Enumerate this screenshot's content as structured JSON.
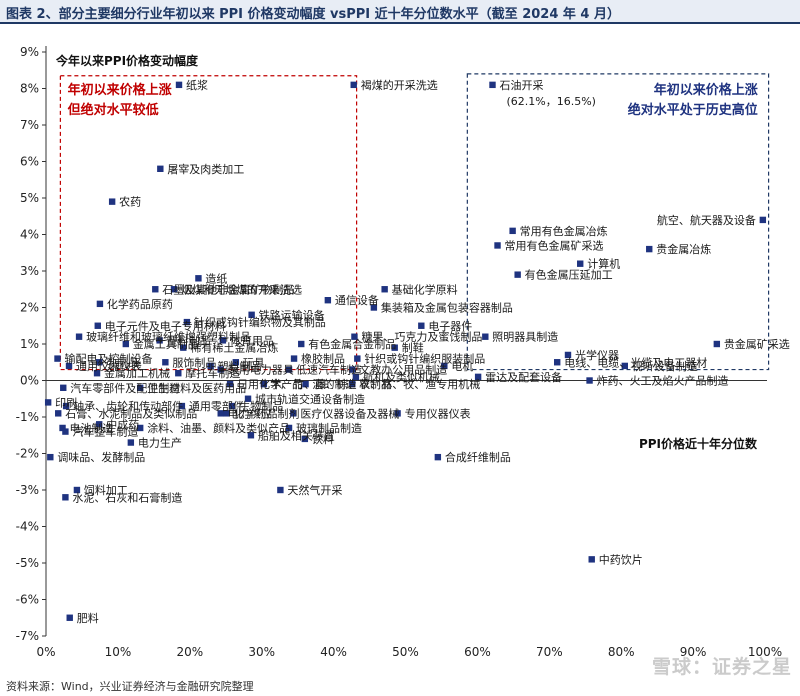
{
  "header": {
    "title": "图表 2、部分主要细分行业年初以来 PPI 价格变动幅度 vsPPI 近十年分位数水平（截至 2024 年 4 月）"
  },
  "footer": {
    "source": "资料来源：Wind，兴业证券经济与金融研究院整理"
  },
  "watermark": {
    "text": "雪球：证券之星"
  },
  "colors": {
    "marker": "#1f3380",
    "box_red": "#c00000",
    "box_blue": "#1f3864",
    "box_blue_text": "#1f3380"
  },
  "chart_data": {
    "type": "scatter",
    "ylabel": "今年以来PPI价格变动幅度",
    "xlabel": "PPI价格近十年分位数",
    "xlim": [
      0,
      100
    ],
    "ylim": [
      -7,
      9
    ],
    "x_unit": "%",
    "y_unit": "%",
    "x_ticks": [
      "0%",
      "10%",
      "20%",
      "30%",
      "40%",
      "50%",
      "60%",
      "70%",
      "80%",
      "90%",
      "100%"
    ],
    "y_ticks": [
      "9%",
      "8%",
      "7%",
      "6%",
      "5%",
      "4%",
      "3%",
      "2%",
      "1%",
      "0%",
      "-1%",
      "-2%",
      "-3%",
      "-4%",
      "-5%",
      "-6%",
      "-7%"
    ],
    "annotations": {
      "red_box": "年初以来价格上涨\n但绝对水平较低",
      "blue_box": "年初以来价格上涨\n绝对水平处于历史高位",
      "oil_label": "(62.1%，16.5%)"
    },
    "points": [
      {
        "label": "石油开采",
        "x": 62.1,
        "y": 8.1
      },
      {
        "label": "纸浆",
        "x": 18.5,
        "y": 8.1
      },
      {
        "label": "褐煤的开采洗选",
        "x": 42.8,
        "y": 8.1
      },
      {
        "label": "屠宰及肉类加工",
        "x": 15.9,
        "y": 5.8
      },
      {
        "label": "农药",
        "x": 9.2,
        "y": 4.9
      },
      {
        "label": "航空、航天器及设备",
        "x": 99.7,
        "y": 4.4
      },
      {
        "label": "常用有色金属冶炼",
        "x": 64.9,
        "y": 4.1
      },
      {
        "label": "常用有色金属矿采选",
        "x": 62.8,
        "y": 3.7
      },
      {
        "label": "贵金属冶炼",
        "x": 83.9,
        "y": 3.6
      },
      {
        "label": "计算机",
        "x": 74.3,
        "y": 3.2
      },
      {
        "label": "有色金属压延加工",
        "x": 65.6,
        "y": 2.9
      },
      {
        "label": "石墨及其他非金属矿物制品",
        "x": 15.2,
        "y": 2.5
      },
      {
        "label": "造纸",
        "x": 21.2,
        "y": 2.8
      },
      {
        "label": "烟煤和无烟煤的开采洗选",
        "x": 17.8,
        "y": 2.5
      },
      {
        "label": "通信设备",
        "x": 39.2,
        "y": 2.2
      },
      {
        "label": "基础化学原料",
        "x": 47.1,
        "y": 2.5
      },
      {
        "label": "化学药品原药",
        "x": 7.5,
        "y": 2.1
      },
      {
        "label": "铁路运输设备",
        "x": 28.6,
        "y": 1.8
      },
      {
        "label": "集装箱及金属包装容器制品",
        "x": 45.6,
        "y": 2.0
      },
      {
        "label": "电子元件及电子专用材料",
        "x": 7.2,
        "y": 1.5
      },
      {
        "label": "针织或钩针编织物及其制品",
        "x": 19.6,
        "y": 1.6
      },
      {
        "label": "电子器件",
        "x": 52.2,
        "y": 1.5
      },
      {
        "label": "照明器具制造",
        "x": 61.1,
        "y": 1.2
      },
      {
        "label": "贵金属矿采选",
        "x": 93.3,
        "y": 1.0
      },
      {
        "label": "玻璃纤维和玻璃纤维增强塑料制品",
        "x": 4.6,
        "y": 1.2
      },
      {
        "label": "糖果、巧克力及蜜饯制品",
        "x": 42.9,
        "y": 1.2
      },
      {
        "label": "体育用品",
        "x": 24.6,
        "y": 1.1
      },
      {
        "label": "有色金属合金制品",
        "x": 35.5,
        "y": 1.0
      },
      {
        "label": "制鞋",
        "x": 48.5,
        "y": 0.9
      },
      {
        "label": "光学仪器",
        "x": 72.6,
        "y": 0.7
      },
      {
        "label": "输配电及控制设备",
        "x": 1.6,
        "y": 0.6
      },
      {
        "label": "金属工具制品",
        "x": 11.1,
        "y": 1.0
      },
      {
        "label": "塑料制品",
        "x": 15.8,
        "y": 1.1
      },
      {
        "label": "稀有稀土金属冶炼",
        "x": 19.1,
        "y": 0.9
      },
      {
        "label": "针织或钩针编织服装制品",
        "x": 43.3,
        "y": 0.6
      },
      {
        "label": "通用仪器仪表",
        "x": 3.2,
        "y": 0.4
      },
      {
        "label": "乳制品",
        "x": 7.4,
        "y": 0.5
      },
      {
        "label": "服饰制品",
        "x": 16.6,
        "y": 0.5
      },
      {
        "label": "玩具",
        "x": 26.4,
        "y": 0.5
      },
      {
        "label": "橡胶制品",
        "x": 34.5,
        "y": 0.6
      },
      {
        "label": "电机",
        "x": 55.4,
        "y": 0.4
      },
      {
        "label": "电线、电缆、光缆及电工器材",
        "x": 71.1,
        "y": 0.5
      },
      {
        "label": "视听设备制造",
        "x": 80.5,
        "y": 0.4
      },
      {
        "label": "文教办公用品制造",
        "x": 42.6,
        "y": 0.3
      },
      {
        "label": "金属加工机械",
        "x": 7.1,
        "y": 0.2
      },
      {
        "label": "摩托车制造",
        "x": 18.4,
        "y": 0.2
      },
      {
        "label": "塑料制品",
        "x": 22.9,
        "y": 0.4
      },
      {
        "label": "家用电力器具",
        "x": 24.3,
        "y": 0.3
      },
      {
        "label": "低速汽车制造",
        "x": 33.8,
        "y": 0.3
      },
      {
        "label": "航机及类似机械",
        "x": 43.1,
        "y": 0.1
      },
      {
        "label": "雷达及配套设备",
        "x": 60.1,
        "y": 0.1
      },
      {
        "label": "炸药、火工及焰火产品制造",
        "x": 75.6,
        "y": 0.0
      },
      {
        "label": "汽车零部件及配件制造",
        "x": 2.4,
        "y": -0.2
      },
      {
        "label": "卫生材料及医药用品",
        "x": 13.1,
        "y": -0.2
      },
      {
        "label": "日用化学产品",
        "x": 25.6,
        "y": -0.1
      },
      {
        "label": "木、竹、藤、棕、草制品",
        "x": 30.3,
        "y": -0.1
      },
      {
        "label": "酒的制造",
        "x": 36.1,
        "y": -0.1
      },
      {
        "label": "农、林、牧、渔专用机械",
        "x": 42.6,
        "y": -0.1
      },
      {
        "label": "印刷",
        "x": 0.3,
        "y": -0.6
      },
      {
        "label": "轴承、齿轮和传动部件",
        "x": 2.8,
        "y": -0.7
      },
      {
        "label": "通用零部件",
        "x": 18.9,
        "y": -0.7
      },
      {
        "label": "城市轨道交通设备制造",
        "x": 28.1,
        "y": -0.5
      },
      {
        "label": "生物制品",
        "x": 25.9,
        "y": -0.7
      },
      {
        "label": "石膏、水泥制品及类似制品",
        "x": 1.7,
        "y": -0.9
      },
      {
        "label": "电力供应",
        "x": 24.3,
        "y": -0.9
      },
      {
        "label": "化学药品制剂",
        "x": 25.1,
        "y": -0.9
      },
      {
        "label": "医疗仪器设备及器械",
        "x": 34.4,
        "y": -0.9
      },
      {
        "label": "专用仪器仪表",
        "x": 48.9,
        "y": -0.9
      },
      {
        "label": "中成药",
        "x": 7.4,
        "y": -1.2
      },
      {
        "label": "电池制造",
        "x": 2.3,
        "y": -1.3
      },
      {
        "label": "涂料、油墨、颜料及类似产品",
        "x": 13.1,
        "y": -1.3
      },
      {
        "label": "玻璃制品制造",
        "x": 33.8,
        "y": -1.3
      },
      {
        "label": "汽车整车制造",
        "x": 2.7,
        "y": -1.4
      },
      {
        "label": "电力生产",
        "x": 11.8,
        "y": -1.7
      },
      {
        "label": "船舶及相关装置",
        "x": 28.5,
        "y": -1.5
      },
      {
        "label": "饮料",
        "x": 36.0,
        "y": -1.6
      },
      {
        "label": "调味品、发酵制品",
        "x": 0.6,
        "y": -2.1
      },
      {
        "label": "合成纤维制品",
        "x": 54.5,
        "y": -2.1
      },
      {
        "label": "饲料加工",
        "x": 4.3,
        "y": -3.0
      },
      {
        "label": "水泥、石灰和石膏制造",
        "x": 2.7,
        "y": -3.2
      },
      {
        "label": "天然气开采",
        "x": 32.6,
        "y": -3.0
      },
      {
        "label": "中药饮片",
        "x": 75.9,
        "y": -4.9
      },
      {
        "label": "肥料",
        "x": 3.3,
        "y": -6.5
      }
    ]
  }
}
